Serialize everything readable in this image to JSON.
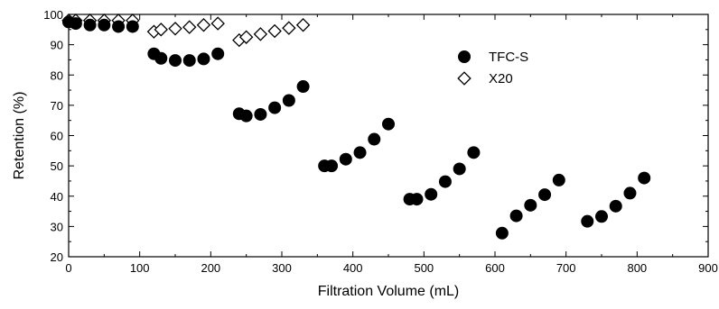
{
  "chart_data": {
    "type": "scatter",
    "xlabel": "Filtration Volume (mL)",
    "ylabel": "Retention (%)",
    "xlim": [
      0,
      900
    ],
    "ylim": [
      20,
      100
    ],
    "xticks": [
      0,
      100,
      200,
      300,
      400,
      500,
      600,
      700,
      800,
      900
    ],
    "yticks": [
      20,
      30,
      40,
      50,
      60,
      70,
      80,
      90,
      100
    ],
    "x_tick_labels": [
      "0",
      "100",
      "200",
      "300",
      "400",
      "500",
      "600",
      "700",
      "800",
      "900"
    ],
    "y_tick_labels": [
      "20",
      "30",
      "40",
      "50",
      "60",
      "70",
      "80",
      "90",
      "100"
    ],
    "grid": false,
    "legend_position": "top-right",
    "series": [
      {
        "name": "TFC-S",
        "marker": "filled-circle",
        "color": "#000000",
        "x": [
          0,
          10,
          30,
          50,
          70,
          90,
          120,
          130,
          150,
          170,
          190,
          210,
          240,
          250,
          270,
          290,
          310,
          330,
          360,
          370,
          390,
          410,
          430,
          450,
          480,
          490,
          510,
          530,
          550,
          570,
          610,
          630,
          650,
          670,
          690,
          730,
          750,
          770,
          790,
          810
        ],
        "y": [
          97.5,
          97,
          96.5,
          96.5,
          96,
          96,
          87,
          85.5,
          84.8,
          84.8,
          85.3,
          87,
          67.2,
          66.5,
          67,
          69.2,
          71.6,
          76.2,
          50,
          50,
          52.2,
          54.4,
          58.8,
          63.8,
          39,
          39,
          40.6,
          44.8,
          49,
          54.4,
          27.8,
          33.5,
          37,
          40.5,
          45.3,
          31.7,
          33.3,
          36.7,
          41,
          46
        ]
      },
      {
        "name": "X20",
        "marker": "open-diamond",
        "color": "#000000",
        "x": [
          0,
          10,
          30,
          50,
          70,
          90,
          120,
          130,
          150,
          170,
          190,
          210,
          240,
          250,
          270,
          290,
          310,
          330
        ],
        "y": [
          98,
          98,
          98,
          98,
          98,
          98,
          94.3,
          95,
          95.3,
          95.8,
          96.5,
          97,
          91.5,
          92.5,
          93.5,
          94.5,
          95.5,
          96.5
        ]
      }
    ]
  }
}
